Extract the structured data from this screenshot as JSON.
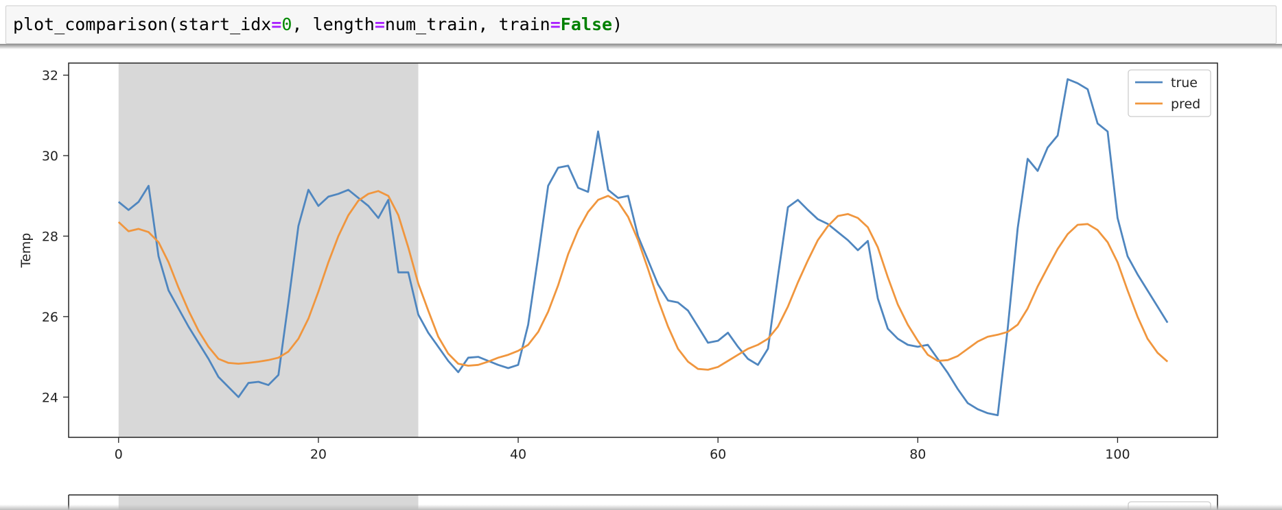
{
  "cell": {
    "func": "plot_comparison",
    "p1": "(start_idx",
    "eq1": "=",
    "v1": "0",
    "p2": ", length",
    "eq2": "=",
    "v2": "num_train",
    "p3": ", train",
    "eq3": "=",
    "v3": "False",
    "p4": ")"
  },
  "chart_data": {
    "type": "line",
    "title": "",
    "xlabel": "",
    "ylabel": "Temp",
    "xlim": [
      -5,
      110
    ],
    "ylim": [
      23.0,
      32.3
    ],
    "xticks": [
      0,
      20,
      40,
      60,
      80,
      100
    ],
    "yticks": [
      24,
      26,
      28,
      30,
      32
    ],
    "shaded_region": [
      0,
      30
    ],
    "legend_position": "top-right",
    "grid": false,
    "series": [
      {
        "name": "true",
        "color": "#4f86bf",
        "x": [
          0,
          1,
          2,
          3,
          4,
          5,
          6,
          7,
          8,
          9,
          10,
          11,
          12,
          13,
          14,
          15,
          16,
          17,
          18,
          19,
          20,
          21,
          22,
          23,
          24,
          25,
          26,
          27,
          28,
          29,
          30,
          31,
          32,
          33,
          34,
          35,
          36,
          37,
          38,
          39,
          40,
          41,
          42,
          43,
          44,
          45,
          46,
          47,
          48,
          49,
          50,
          51,
          52,
          53,
          54,
          55,
          56,
          57,
          58,
          59,
          60,
          61,
          62,
          63,
          64,
          65,
          66,
          67,
          68,
          69,
          70,
          71,
          72,
          73,
          74,
          75,
          76,
          77,
          78,
          79,
          80,
          81,
          82,
          83,
          84,
          85,
          86,
          87,
          88,
          89,
          90,
          91,
          92,
          93,
          94,
          95,
          96,
          97,
          98,
          99,
          100,
          101,
          102,
          103,
          104,
          105
        ],
        "values": [
          28.85,
          28.65,
          28.85,
          29.25,
          27.5,
          26.65,
          26.2,
          25.75,
          25.35,
          24.95,
          24.5,
          24.25,
          24.0,
          24.35,
          24.38,
          24.3,
          24.55,
          26.35,
          28.25,
          29.15,
          28.75,
          28.98,
          29.05,
          29.15,
          28.95,
          28.75,
          28.45,
          28.9,
          27.1,
          27.1,
          26.05,
          25.6,
          25.25,
          24.9,
          24.62,
          24.98,
          25.0,
          24.9,
          24.8,
          24.72,
          24.8,
          25.8,
          27.5,
          29.25,
          29.7,
          29.75,
          29.2,
          29.1,
          30.6,
          29.15,
          28.95,
          29.0,
          28.0,
          27.4,
          26.8,
          26.4,
          26.35,
          26.15,
          25.75,
          25.35,
          25.4,
          25.6,
          25.25,
          24.95,
          24.8,
          25.2,
          27.0,
          28.72,
          28.9,
          28.65,
          28.42,
          28.3,
          28.1,
          27.9,
          27.65,
          27.88,
          26.45,
          25.7,
          25.45,
          25.3,
          25.25,
          25.3,
          24.95,
          24.6,
          24.2,
          23.85,
          23.7,
          23.6,
          23.55,
          25.7,
          28.2,
          29.92,
          29.62,
          30.2,
          30.5,
          31.9,
          31.8,
          31.65,
          30.8,
          30.6,
          28.45,
          27.5,
          27.05,
          26.65,
          26.25,
          25.85
        ]
      },
      {
        "name": "pred",
        "color": "#f0963e",
        "x": [
          0,
          1,
          2,
          3,
          4,
          5,
          6,
          7,
          8,
          9,
          10,
          11,
          12,
          13,
          14,
          15,
          16,
          17,
          18,
          19,
          20,
          21,
          22,
          23,
          24,
          25,
          26,
          27,
          28,
          29,
          30,
          31,
          32,
          33,
          34,
          35,
          36,
          37,
          38,
          39,
          40,
          41,
          42,
          43,
          44,
          45,
          46,
          47,
          48,
          49,
          50,
          51,
          52,
          53,
          54,
          55,
          56,
          57,
          58,
          59,
          60,
          61,
          62,
          63,
          64,
          65,
          66,
          67,
          68,
          69,
          70,
          71,
          72,
          73,
          74,
          75,
          76,
          77,
          78,
          79,
          80,
          81,
          82,
          83,
          84,
          85,
          86,
          87,
          88,
          89,
          90,
          91,
          92,
          93,
          94,
          95,
          96,
          97,
          98,
          99,
          100,
          101,
          102,
          103,
          104,
          105
        ],
        "values": [
          28.35,
          28.12,
          28.18,
          28.1,
          27.85,
          27.35,
          26.72,
          26.15,
          25.65,
          25.25,
          24.95,
          24.85,
          24.83,
          24.85,
          24.88,
          24.92,
          24.98,
          25.13,
          25.45,
          25.95,
          26.62,
          27.35,
          28.0,
          28.52,
          28.88,
          29.05,
          29.12,
          29.0,
          28.52,
          27.72,
          26.82,
          26.15,
          25.5,
          25.08,
          24.83,
          24.78,
          24.8,
          24.88,
          24.98,
          25.05,
          25.15,
          25.3,
          25.62,
          26.12,
          26.78,
          27.55,
          28.15,
          28.6,
          28.9,
          29.0,
          28.85,
          28.48,
          27.9,
          27.18,
          26.42,
          25.75,
          25.2,
          24.88,
          24.7,
          24.68,
          24.75,
          24.9,
          25.05,
          25.2,
          25.3,
          25.45,
          25.75,
          26.25,
          26.85,
          27.4,
          27.9,
          28.25,
          28.5,
          28.55,
          28.45,
          28.22,
          27.72,
          26.98,
          26.3,
          25.8,
          25.4,
          25.05,
          24.9,
          24.92,
          25.02,
          25.2,
          25.38,
          25.5,
          25.55,
          25.62,
          25.8,
          26.2,
          26.75,
          27.22,
          27.68,
          28.05,
          28.28,
          28.3,
          28.15,
          27.85,
          27.35,
          26.65,
          26.0,
          25.45,
          25.1,
          24.88
        ]
      }
    ]
  }
}
